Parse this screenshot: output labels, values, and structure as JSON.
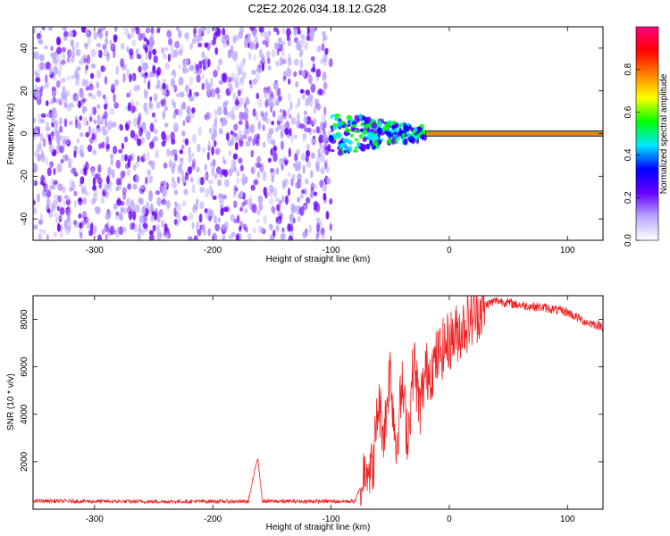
{
  "title": "C2E2.2026.034.18.12.G28",
  "chart_data": [
    {
      "type": "heatmap",
      "xlabel": "Height of straight line (km)",
      "ylabel": "Frequency (Hz)",
      "xlim": [
        -352,
        130
      ],
      "ylim": [
        -50,
        50
      ],
      "xticks": [
        -300,
        -200,
        -100,
        0,
        100
      ],
      "yticks": [
        -40,
        -20,
        0,
        20,
        40
      ],
      "colorbar": {
        "label": "Normalized spectral amplitude",
        "range": [
          0.0,
          1.0
        ],
        "ticks": [
          "0.0",
          "0.2",
          "0.4",
          "0.6",
          "0.8"
        ],
        "colormap": [
          "#ffffff",
          "#b9a6ff",
          "#6a00ff",
          "#0000ff",
          "#00e6ff",
          "#00ff00",
          "#ffff00",
          "#ff8000",
          "#ff0000",
          "#ff0080"
        ]
      },
      "regions": [
        {
          "x": [
            -352,
            -100
          ],
          "y": [
            -50,
            50
          ],
          "amplitude": [
            0.05,
            0.25
          ],
          "description_level": "broadband noise"
        },
        {
          "x": [
            -100,
            -20
          ],
          "y": [
            -10,
            10
          ],
          "amplitude": [
            0.2,
            0.6
          ]
        },
        {
          "x": [
            -20,
            130
          ],
          "y": [
            -1,
            1
          ],
          "amplitude": [
            0.8,
            1.0
          ]
        }
      ]
    },
    {
      "type": "line",
      "xlabel": "Height of straight line (km)",
      "ylabel": "SNR (10 * v/v)",
      "xlim": [
        -352,
        130
      ],
      "ylim": [
        0,
        9000
      ],
      "xticks": [
        -300,
        -200,
        -100,
        0,
        100
      ],
      "yticks": [
        2000,
        4000,
        6000,
        8000
      ],
      "color": "#ee2222",
      "series": [
        {
          "x": [
            -352,
            -300,
            -250,
            -200,
            -170,
            -162,
            -158,
            -150,
            -120,
            -100,
            -80,
            -75,
            -70,
            -65,
            -60,
            -55,
            -50,
            -45,
            -40,
            -35,
            -30,
            -25,
            -20,
            -15,
            -10,
            -5,
            0,
            10,
            20,
            30,
            40,
            60,
            80,
            100,
            115,
            130
          ],
          "y": [
            350,
            330,
            320,
            330,
            320,
            2200,
            340,
            330,
            330,
            330,
            330,
            900,
            2100,
            1500,
            4500,
            3200,
            6000,
            2600,
            5200,
            3000,
            6300,
            4200,
            5800,
            5900,
            6400,
            6800,
            7100,
            7600,
            8100,
            8600,
            8800,
            8600,
            8500,
            8300,
            7900,
            7700
          ]
        }
      ]
    }
  ]
}
